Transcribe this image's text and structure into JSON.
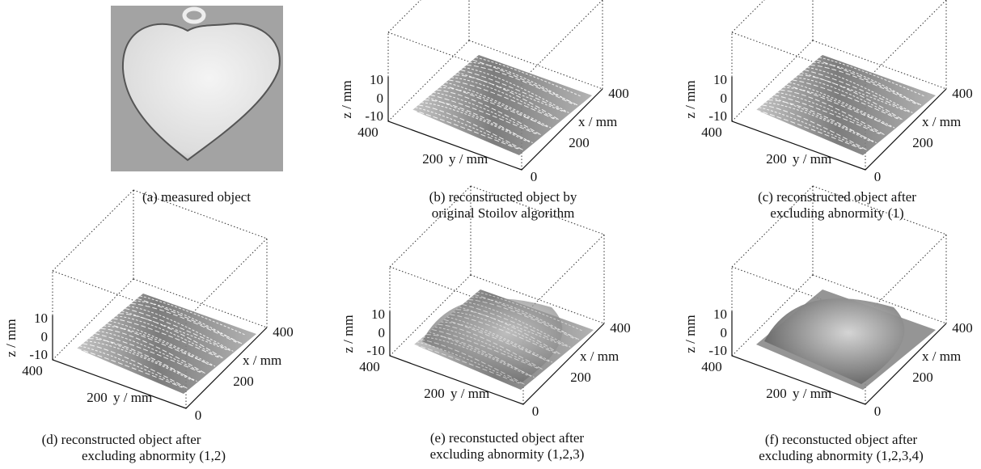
{
  "figure": {
    "photo_caption": "(a) measured object",
    "plots": [
      {
        "caption": [
          "(b) reconstructed object by",
          "original Stoilov algorithm"
        ],
        "z_label": "z / mm",
        "x_label": "x / mm",
        "y_label": "y / mm",
        "z_ticks": [
          10,
          0,
          -10
        ],
        "x_ticks": [
          400,
          200,
          0
        ],
        "y_ticks": [
          400,
          200
        ]
      },
      {
        "caption": [
          "(c) reconstructed object after",
          "excluding abnormity (1)"
        ],
        "z_label": "z / mm",
        "x_label": "x / mm",
        "y_label": "y / mm",
        "z_ticks": [
          10,
          0,
          -10
        ],
        "x_ticks": [
          400,
          200,
          0
        ],
        "y_ticks": [
          400,
          200
        ]
      },
      {
        "caption": [
          "(d) reconstructed object after",
          "excluding abnormity (1,2)"
        ],
        "z_label": "z / mm",
        "x_label": "x / mm",
        "y_label": "y / mm",
        "z_ticks": [
          10,
          0,
          -10
        ],
        "x_ticks": [
          400,
          200,
          0
        ],
        "y_ticks": [
          400,
          200
        ]
      },
      {
        "caption": [
          "(e) reconstucted object after",
          "excluding abnormity (1,2,3)"
        ],
        "z_label": "z / mm",
        "x_label": "x / mm",
        "y_label": "y / mm",
        "z_ticks": [
          10,
          0,
          -10
        ],
        "x_ticks": [
          400,
          200,
          0
        ],
        "y_ticks": [
          400,
          200
        ]
      },
      {
        "caption": [
          "(f) reconstucted object after",
          "excluding abnormity (1,2,3,4)"
        ],
        "z_label": "z / mm",
        "x_label": "x / mm",
        "y_label": "y / mm",
        "z_ticks": [
          10,
          0,
          -10
        ],
        "x_ticks": [
          400,
          200,
          0
        ],
        "y_ticks": [
          400,
          200
        ]
      }
    ]
  }
}
